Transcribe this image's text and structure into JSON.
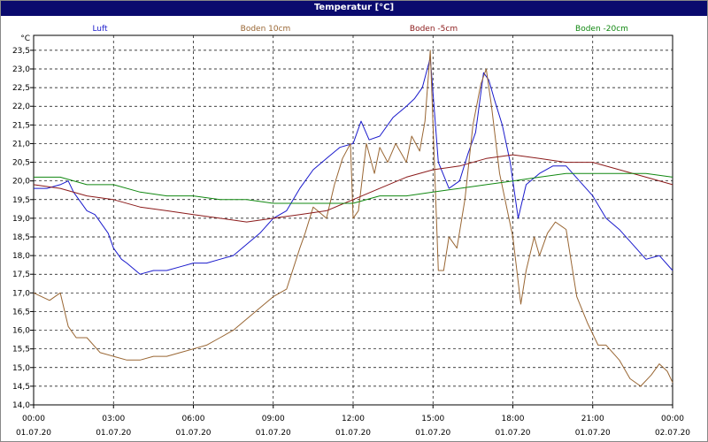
{
  "window": {
    "title": "Temperatur [°C]"
  },
  "chart_data": {
    "type": "line",
    "title": "Temperatur [°C]",
    "ylabel": "°C",
    "ylim": [
      14.0,
      23.9
    ],
    "yticks": [
      "14,0",
      "14,5",
      "15,0",
      "15,5",
      "16,0",
      "16,5",
      "17,0",
      "17,5",
      "18,0",
      "18,5",
      "19,0",
      "19,5",
      "20,0",
      "20,5",
      "21,0",
      "21,5",
      "22,0",
      "22,5",
      "23,0",
      "23,5"
    ],
    "xlim_hours": [
      0,
      24
    ],
    "xticks": [
      {
        "time": "00:00",
        "date": "01.07.20"
      },
      {
        "time": "03:00",
        "date": "01.07.20"
      },
      {
        "time": "06:00",
        "date": "01.07.20"
      },
      {
        "time": "09:00",
        "date": "01.07.20"
      },
      {
        "time": "12:00",
        "date": "01.07.20"
      },
      {
        "time": "15:00",
        "date": "01.07.20"
      },
      {
        "time": "18:00",
        "date": "01.07.20"
      },
      {
        "time": "21:00",
        "date": "01.07.20"
      },
      {
        "time": "00:00",
        "date": "02.07.20"
      }
    ],
    "grid": true,
    "legend_position": "top",
    "series": [
      {
        "name": "Luft",
        "color": "#1a1acc",
        "x": [
          0,
          0.5,
          1,
          1.3,
          1.5,
          2,
          2.3,
          2.5,
          2.8,
          3,
          3.3,
          3.5,
          4,
          4.5,
          5,
          5.5,
          6,
          6.5,
          7,
          7.5,
          8,
          8.5,
          9,
          9.5,
          10,
          10.5,
          11,
          11.5,
          12,
          12.3,
          12.6,
          13,
          13.5,
          14,
          14.3,
          14.6,
          14.9,
          15.2,
          15.6,
          16,
          16.3,
          16.6,
          16.9,
          17.1,
          17.3,
          17.6,
          17.9,
          18.2,
          18.5,
          19,
          19.5,
          20,
          20.5,
          21,
          21.5,
          22,
          22.5,
          23,
          23.5,
          24
        ],
        "y": [
          19.8,
          19.8,
          19.9,
          20.0,
          19.7,
          19.2,
          19.1,
          18.9,
          18.6,
          18.2,
          17.9,
          17.8,
          17.5,
          17.6,
          17.6,
          17.7,
          17.8,
          17.8,
          17.9,
          18.0,
          18.3,
          18.6,
          19.0,
          19.2,
          19.8,
          20.3,
          20.6,
          20.9,
          21.0,
          21.6,
          21.1,
          21.2,
          21.7,
          22.0,
          22.2,
          22.5,
          23.3,
          20.5,
          19.8,
          20.0,
          20.7,
          21.3,
          22.9,
          22.7,
          22.2,
          21.5,
          20.5,
          19.0,
          19.9,
          20.2,
          20.4,
          20.4,
          20.0,
          19.6,
          19.0,
          18.7,
          18.3,
          17.9,
          18.0,
          17.6
        ]
      },
      {
        "name": "Boden 10cm",
        "color": "#996633",
        "x": [
          0,
          0.3,
          0.6,
          1,
          1.3,
          1.6,
          2,
          2.5,
          3,
          3.5,
          4,
          4.5,
          5,
          5.5,
          6,
          6.5,
          7,
          7.5,
          8,
          8.5,
          9,
          9.5,
          10,
          10.2,
          10.5,
          11,
          11.3,
          11.6,
          11.9,
          12,
          12.2,
          12.5,
          12.8,
          13,
          13.3,
          13.6,
          14,
          14.2,
          14.5,
          14.7,
          14.9,
          15.0,
          15.2,
          15.4,
          15.6,
          15.9,
          16.2,
          16.5,
          16.8,
          17.0,
          17.2,
          17.5,
          18,
          18.3,
          18.5,
          18.8,
          19,
          19.3,
          19.6,
          20,
          20.4,
          20.8,
          21.2,
          21.5,
          22,
          22.4,
          22.8,
          23.2,
          23.5,
          23.8,
          24
        ],
        "y": [
          17.0,
          16.9,
          16.8,
          17.0,
          16.1,
          15.8,
          15.8,
          15.4,
          15.3,
          15.2,
          15.2,
          15.3,
          15.3,
          15.4,
          15.5,
          15.6,
          15.8,
          16.0,
          16.3,
          16.6,
          16.9,
          17.1,
          18.2,
          18.6,
          19.3,
          19.0,
          19.9,
          20.6,
          21.0,
          19.0,
          19.2,
          21.0,
          20.2,
          20.9,
          20.5,
          21.0,
          20.5,
          21.2,
          20.8,
          21.6,
          23.5,
          21.5,
          17.6,
          17.6,
          18.5,
          18.2,
          19.5,
          21.5,
          22.6,
          23.0,
          22.0,
          20.2,
          18.5,
          16.7,
          17.6,
          18.5,
          18.0,
          18.6,
          18.9,
          18.7,
          16.9,
          16.2,
          15.6,
          15.6,
          15.2,
          14.7,
          14.5,
          14.8,
          15.1,
          14.9,
          14.6
        ]
      },
      {
        "name": "Boden -5cm",
        "color": "#8b1a1a",
        "x": [
          0,
          1,
          2,
          3,
          4,
          5,
          6,
          7,
          8,
          9,
          10,
          11,
          12,
          13,
          14,
          15,
          16,
          17,
          18,
          19,
          20,
          21,
          22,
          23,
          24
        ],
        "y": [
          19.9,
          19.8,
          19.6,
          19.5,
          19.3,
          19.2,
          19.1,
          19.0,
          18.9,
          19.0,
          19.1,
          19.2,
          19.5,
          19.8,
          20.1,
          20.3,
          20.4,
          20.6,
          20.7,
          20.6,
          20.5,
          20.5,
          20.3,
          20.1,
          19.9
        ]
      },
      {
        "name": "Boden -20cm",
        "color": "#118811",
        "x": [
          0,
          1,
          2,
          3,
          4,
          5,
          6,
          7,
          8,
          9,
          10,
          11,
          12,
          13,
          14,
          15,
          16,
          17,
          18,
          19,
          20,
          21,
          22,
          23,
          24
        ],
        "y": [
          20.1,
          20.1,
          19.9,
          19.9,
          19.7,
          19.6,
          19.6,
          19.5,
          19.5,
          19.4,
          19.4,
          19.4,
          19.4,
          19.6,
          19.6,
          19.7,
          19.8,
          19.9,
          20.0,
          20.1,
          20.2,
          20.2,
          20.2,
          20.2,
          20.1
        ]
      }
    ]
  }
}
